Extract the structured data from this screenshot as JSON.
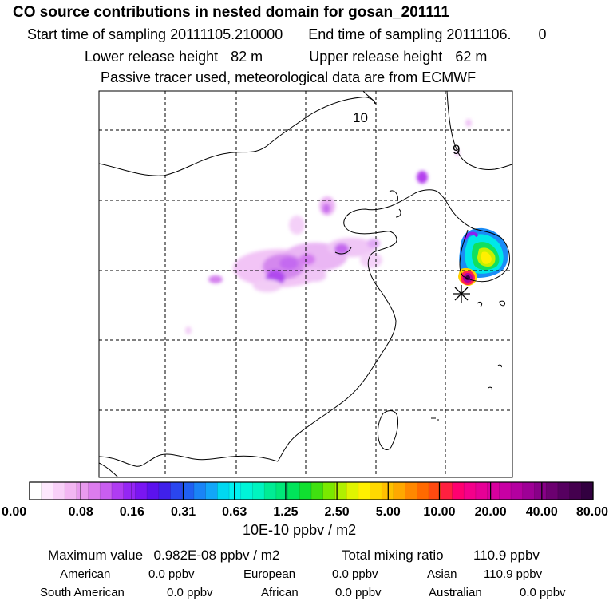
{
  "header": {
    "title": "CO  source contributions in nested domain for gosan_201111",
    "start_label": "Start time of sampling",
    "start_value": "20111105.210000",
    "end_label": "End time of sampling",
    "end_value": "20111106.",
    "end_suffix": "0",
    "lower_label": "Lower release height",
    "lower_value": "82 m",
    "upper_label": "Upper release height",
    "upper_value": "62 m",
    "note": "Passive tracer used, meteorological data are from ECMWF"
  },
  "map": {
    "contour_labels": [
      "10",
      "9"
    ],
    "release_marker": "asterisk"
  },
  "colorbar": {
    "tick_labels": [
      "0.00",
      "0.08",
      "0.16",
      "0.31",
      "0.63",
      "1.25",
      "2.50",
      "5.00",
      "10.00",
      "20.00",
      "40.00",
      "80.00"
    ],
    "colors": [
      "#ffffff",
      "#fde8fd",
      "#f8d0f8",
      "#f2b6f2",
      "#e89aee",
      "#dc7cee",
      "#c95ef0",
      "#b03cf2",
      "#9526f4",
      "#7a16f2",
      "#5c12ee",
      "#4020ea",
      "#2a46ee",
      "#2060f2",
      "#1a84f6",
      "#12a6f8",
      "#00d8f0",
      "#00f0f0",
      "#00f4d8",
      "#00f4c0",
      "#00ec94",
      "#00e878",
      "#00e45a",
      "#10e030",
      "#40e010",
      "#7ae800",
      "#b0f000",
      "#e0f400",
      "#fff000",
      "#ffd800",
      "#ffc000",
      "#ffa800",
      "#ff8800",
      "#ff6a00",
      "#ff4a10",
      "#ff2040",
      "#ff0070",
      "#f4008a",
      "#e60096",
      "#d8009e",
      "#c800a4",
      "#b400a0",
      "#9e0096",
      "#880088",
      "#6c0070",
      "#560060",
      "#44004e",
      "#320040"
    ],
    "units": "10E-10 ppbv / m2"
  },
  "stats": {
    "max_label": "Maximum value",
    "max_value": "0.982E-08 ppbv / m2",
    "total_label": "Total mixing ratio",
    "total_value": "110.9 ppbv",
    "regions": [
      {
        "name": "American",
        "value": "0.0 ppbv"
      },
      {
        "name": "European",
        "value": "0.0 ppbv"
      },
      {
        "name": "Asian",
        "value": "110.9 ppbv"
      },
      {
        "name": "South American",
        "value": "0.0 ppbv"
      },
      {
        "name": "African",
        "value": "0.0 ppbv"
      },
      {
        "name": "Australian",
        "value": "0.0 ppbv"
      }
    ]
  }
}
